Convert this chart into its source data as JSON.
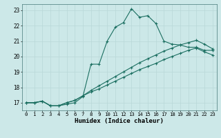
{
  "xlabel": "Humidex (Indice chaleur)",
  "xlim": [
    -0.5,
    23.5
  ],
  "ylim": [
    16.5,
    23.4
  ],
  "xticks": [
    0,
    1,
    2,
    3,
    4,
    5,
    6,
    7,
    8,
    9,
    10,
    11,
    12,
    13,
    14,
    15,
    16,
    17,
    18,
    19,
    20,
    21,
    22,
    23
  ],
  "yticks": [
    17,
    18,
    19,
    20,
    21,
    22,
    23
  ],
  "bg_color": "#cce8e8",
  "grid_color": "#b8d8d8",
  "line_color": "#1a6e60",
  "line1_x": [
    0,
    1,
    2,
    3,
    4,
    5,
    6,
    7,
    8,
    9,
    10,
    11,
    12,
    13,
    14,
    15,
    16,
    17,
    18,
    19,
    20,
    21,
    22,
    23
  ],
  "line1_y": [
    17.0,
    17.0,
    17.1,
    16.8,
    16.8,
    16.9,
    17.0,
    17.4,
    19.5,
    19.5,
    21.0,
    21.9,
    22.2,
    23.1,
    22.55,
    22.65,
    22.15,
    21.0,
    20.8,
    20.75,
    20.6,
    20.6,
    20.4,
    20.4
  ],
  "line2_x": [
    0,
    1,
    2,
    3,
    4,
    5,
    6,
    7,
    8,
    9,
    10,
    11,
    12,
    13,
    14,
    15,
    16,
    17,
    18,
    19,
    20,
    21,
    22,
    23
  ],
  "line2_y": [
    17.0,
    17.0,
    17.1,
    16.8,
    16.8,
    17.0,
    17.15,
    17.45,
    17.8,
    18.1,
    18.4,
    18.7,
    19.0,
    19.3,
    19.6,
    19.85,
    20.1,
    20.35,
    20.55,
    20.75,
    20.9,
    21.05,
    20.8,
    20.5
  ],
  "line3_x": [
    0,
    1,
    2,
    3,
    4,
    5,
    6,
    7,
    8,
    9,
    10,
    11,
    12,
    13,
    14,
    15,
    16,
    17,
    18,
    19,
    20,
    21,
    22,
    23
  ],
  "line3_y": [
    17.0,
    17.0,
    17.1,
    16.8,
    16.8,
    17.0,
    17.15,
    17.45,
    17.7,
    17.9,
    18.15,
    18.4,
    18.65,
    18.9,
    19.15,
    19.35,
    19.55,
    19.8,
    20.0,
    20.2,
    20.4,
    20.55,
    20.3,
    20.1
  ]
}
